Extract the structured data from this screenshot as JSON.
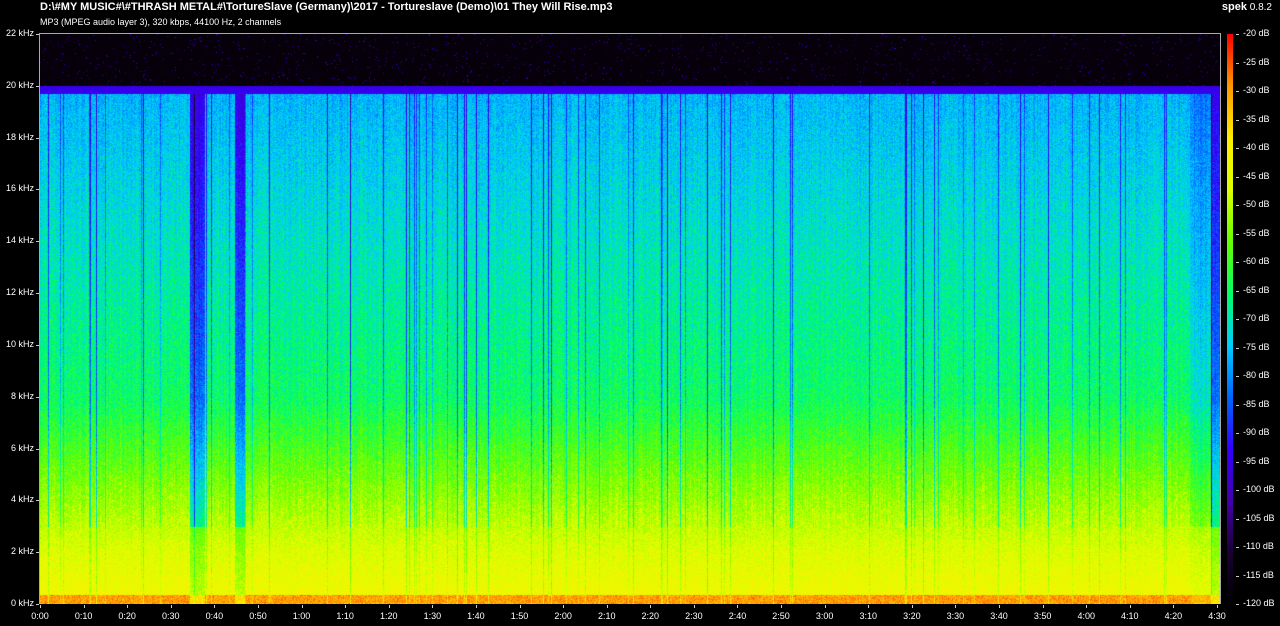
{
  "header": {
    "file_path": "D:\\#MY MUSIC#\\#THRASH METAL#\\TortureSlave (Germany)\\2017 - Tortureslave (Demo)\\01 They Will Rise.mp3",
    "file_info": "MP3 (MPEG audio layer 3), 320 kbps, 44100 Hz, 2 channels",
    "app_name": "spek",
    "app_version": "0.8.2"
  },
  "spectrogram": {
    "frequency_axis": {
      "unit": "kHz",
      "labels": [
        "0 kHz",
        "2 kHz",
        "4 kHz",
        "6 kHz",
        "8 kHz",
        "10 kHz",
        "12 kHz",
        "14 kHz",
        "16 kHz",
        "18 kHz",
        "20 kHz",
        "22 kHz"
      ],
      "min": 0,
      "max": 22
    },
    "time_axis": {
      "labels": [
        "0:00",
        "0:10",
        "0:20",
        "0:30",
        "0:40",
        "0:50",
        "1:00",
        "1:10",
        "1:20",
        "1:30",
        "1:40",
        "1:50",
        "2:00",
        "2:10",
        "2:20",
        "2:30",
        "2:40",
        "2:50",
        "3:00",
        "3:10",
        "3:20",
        "3:30",
        "3:40",
        "3:50",
        "4:00",
        "4:10",
        "4:20",
        "4:30"
      ],
      "step_seconds": 10
    },
    "cutoff_khz": 20,
    "db_scale": {
      "labels": [
        "-20 dB",
        "-25 dB",
        "-30 dB",
        "-35 dB",
        "-40 dB",
        "-45 dB",
        "-50 dB",
        "-55 dB",
        "-60 dB",
        "-65 dB",
        "-70 dB",
        "-75 dB",
        "-80 dB",
        "-85 dB",
        "-90 dB",
        "-95 dB",
        "-100 dB",
        "-105 dB",
        "-110 dB",
        "-115 dB",
        "-120 dB"
      ],
      "max_db": -20,
      "min_db": -120
    },
    "palette": [
      "#000000",
      "#1a0033",
      "#4400aa",
      "#3300ff",
      "#0066ff",
      "#00ccff",
      "#00ff66",
      "#66ff00",
      "#ddff00",
      "#ffee00",
      "#ff9900",
      "#ff0000"
    ]
  }
}
